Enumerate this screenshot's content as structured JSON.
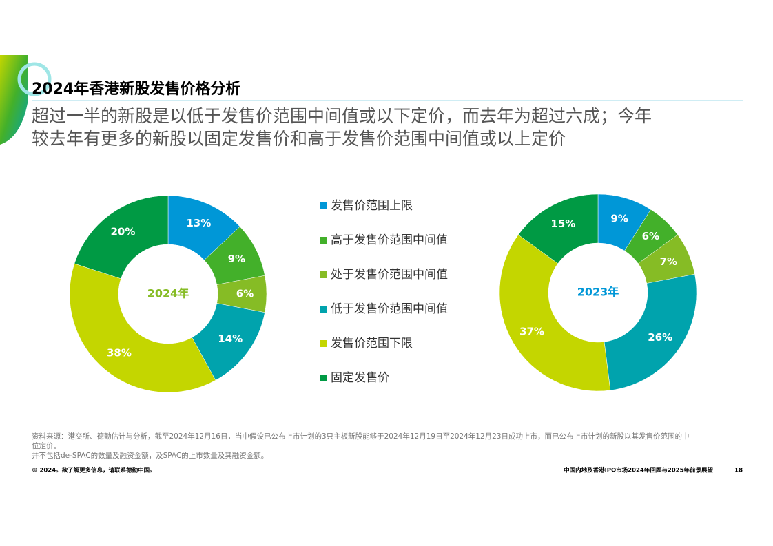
{
  "page": {
    "title": "2024年香港新股发售价格分析",
    "subtitle_lines": [
      "超过一半的新股是以低于发售价范围中间值或以下定价，而去年为超过六成；今年",
      "较去年有更多的新股以固定发售价和高于发售价范围中间值或以上定价"
    ],
    "notes": [
      "资料来源：港交所、德勤估计与分析，截至2024年12月16日，当中假设已公布上市计划的3只主板新股能够于2024年12月19日至2024年12月23日成功上市，而已公布上市计划的新股以其发售价范围的中",
      "位定价。",
      "并不包括de-SPAC的数量及融资金额，及SPAC的上市数量及其融资金额。"
    ],
    "footer_left": "© 2024。欲了解更多信息，请联系德勤中国。",
    "footer_right": "中国内地及香港IPO市场2024年回顾与2025年前景展望",
    "page_number": "18"
  },
  "chart_data": {
    "type": "pie",
    "donut": true,
    "categories": [
      "发售价范围上限",
      "高于发售价范围中间值",
      "处于发售价范围中间值",
      "低于发售价范围中间值",
      "发售价范围下限",
      "固定发售价"
    ],
    "colors": [
      "#0097d7",
      "#43b02a",
      "#86bc25",
      "#00a3ad",
      "#c4d600",
      "#009a44"
    ],
    "series": [
      {
        "name": "2024年",
        "color": "#86bc25",
        "values": [
          13,
          9,
          6,
          14,
          38,
          20
        ],
        "value_labels": [
          "13%",
          "9%",
          "6%",
          "14%",
          "38%",
          "20%"
        ]
      },
      {
        "name": "2023年",
        "color": "#0097d7",
        "values": [
          9,
          6,
          7,
          26,
          37,
          15
        ],
        "value_labels": [
          "9%",
          "6%",
          "7%",
          "26%",
          "37%",
          "15%"
        ]
      }
    ]
  }
}
